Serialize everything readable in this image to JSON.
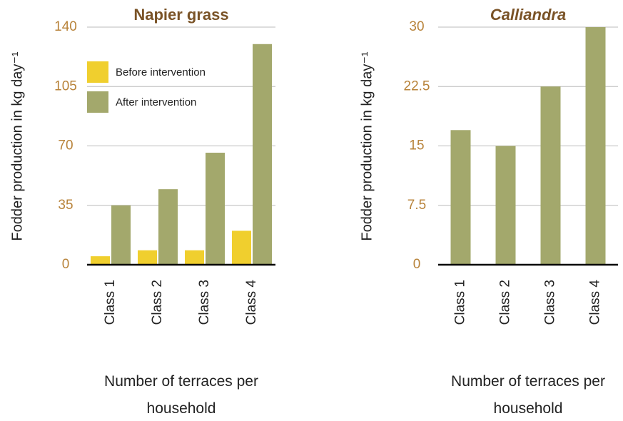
{
  "chart_data": [
    {
      "type": "bar",
      "title": "Napier grass",
      "y_label": "Fodder production in kg day⁻¹",
      "x_label": "Number of terraces per household",
      "categories": [
        "Class 1",
        "Class 2",
        "Class 3",
        "Class 4"
      ],
      "series": [
        {
          "name": "Before intervention",
          "color": "#f0cf2e",
          "values": [
            5,
            8.5,
            8.5,
            20
          ]
        },
        {
          "name": "After intervention",
          "color": "#a3a86c",
          "values": [
            35,
            44.5,
            66,
            130
          ]
        }
      ],
      "ylim": [
        0,
        140
      ],
      "yticks": [
        0,
        35,
        70,
        105,
        140
      ],
      "grid": true,
      "legend": "upper left"
    },
    {
      "type": "bar",
      "title": "Calliandra",
      "y_label": "Fodder production in kg day⁻¹",
      "x_label": "Number of terraces per household",
      "categories": [
        "Class 1",
        "Class 2",
        "Class 3",
        "Class 4"
      ],
      "values": [
        17,
        15,
        22.5,
        30
      ],
      "color": "#a3a86c",
      "ylim": [
        0,
        30
      ],
      "yticks": [
        0,
        7.5,
        15,
        22.5,
        30
      ],
      "grid": true
    }
  ]
}
